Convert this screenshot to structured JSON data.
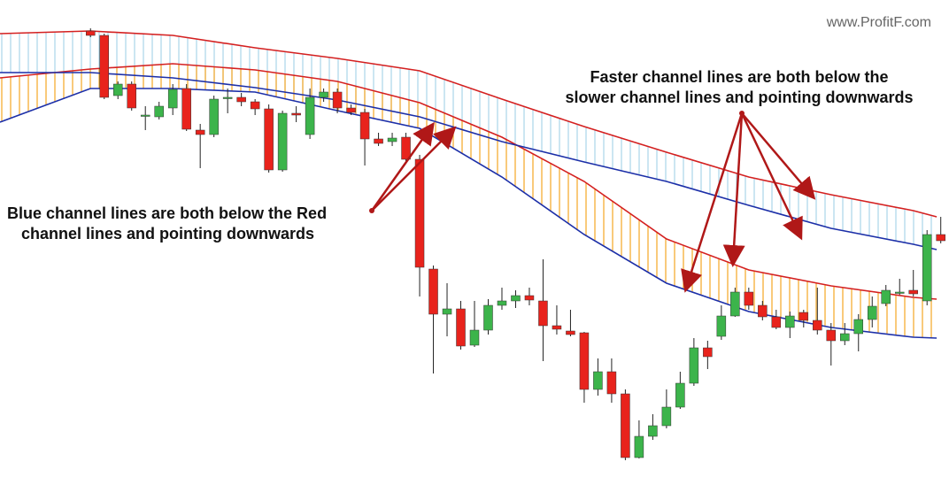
{
  "chart_data": {
    "type": "candlestick",
    "watermark": "www.ProfitF.com",
    "xlim": [
      -6.6,
      62.6
    ],
    "ylim": [
      0,
      548
    ],
    "up_color": "#3cb44b",
    "down_color": "#e8231c",
    "ohlc": [
      [
        513,
        516,
        506,
        508
      ],
      [
        508,
        510,
        436,
        438
      ],
      [
        440,
        456,
        436,
        453
      ],
      [
        453,
        456,
        423,
        426
      ],
      [
        418,
        428,
        401,
        418
      ],
      [
        416,
        433,
        413,
        428
      ],
      [
        426,
        453,
        418,
        447
      ],
      [
        448,
        453,
        400,
        402
      ],
      [
        401,
        408,
        358,
        396
      ],
      [
        396,
        440,
        393,
        436
      ],
      [
        438,
        448,
        420,
        438
      ],
      [
        438,
        443,
        428,
        433
      ],
      [
        433,
        436,
        418,
        425
      ],
      [
        425,
        430,
        353,
        356
      ],
      [
        356,
        423,
        354,
        420
      ],
      [
        420,
        428,
        410,
        418
      ],
      [
        396,
        448,
        391,
        438
      ],
      [
        438,
        448,
        433,
        444
      ],
      [
        444,
        448,
        420,
        426
      ],
      [
        426,
        430,
        418,
        421
      ],
      [
        421,
        425,
        361,
        391
      ],
      [
        391,
        398,
        383,
        386
      ],
      [
        388,
        398,
        383,
        392
      ],
      [
        393,
        398,
        365,
        368
      ],
      [
        368,
        373,
        213,
        246
      ],
      [
        244,
        248,
        126,
        193
      ],
      [
        193,
        228,
        168,
        199
      ],
      [
        199,
        208,
        153,
        157
      ],
      [
        158,
        208,
        156,
        175
      ],
      [
        175,
        210,
        170,
        203
      ],
      [
        203,
        223,
        198,
        208
      ],
      [
        208,
        220,
        200,
        214
      ],
      [
        214,
        223,
        203,
        209
      ],
      [
        208,
        255,
        140,
        180
      ],
      [
        180,
        203,
        170,
        176
      ],
      [
        174,
        198,
        168,
        170
      ],
      [
        172,
        173,
        93,
        108
      ],
      [
        108,
        143,
        101,
        128
      ],
      [
        128,
        143,
        93,
        103
      ],
      [
        103,
        108,
        28,
        31
      ],
      [
        31,
        73,
        30,
        55
      ],
      [
        55,
        80,
        51,
        67
      ],
      [
        67,
        108,
        64,
        88
      ],
      [
        88,
        128,
        86,
        115
      ],
      [
        115,
        166,
        112,
        155
      ],
      [
        155,
        163,
        131,
        145
      ],
      [
        168,
        203,
        164,
        191
      ],
      [
        191,
        223,
        190,
        218
      ],
      [
        218,
        223,
        198,
        203
      ],
      [
        203,
        208,
        186,
        190
      ],
      [
        190,
        198,
        176,
        178
      ],
      [
        178,
        196,
        166,
        191
      ],
      [
        195,
        198,
        178,
        186
      ],
      [
        186,
        223,
        170,
        175
      ],
      [
        175,
        183,
        135,
        163
      ],
      [
        163,
        183,
        158,
        171
      ],
      [
        171,
        193,
        151,
        187
      ],
      [
        187,
        213,
        178,
        202
      ],
      [
        205,
        226,
        202,
        220
      ],
      [
        218,
        233,
        215,
        218
      ],
      [
        220,
        243,
        213,
        216
      ],
      [
        208,
        288,
        203,
        283
      ],
      [
        283,
        303,
        273,
        276
      ]
    ],
    "lines": [
      {
        "color": "#d42020",
        "x": [
          -6.6,
          0,
          6,
          12,
          18,
          24,
          30,
          36,
          42,
          48,
          54,
          60,
          61.7
        ],
        "values": [
          510,
          513,
          508,
          494,
          482,
          468,
          436,
          405,
          376,
          348,
          328,
          310,
          303
        ]
      },
      {
        "color": "#d42020",
        "x": [
          -6.6,
          0,
          6,
          12,
          18,
          24,
          30,
          36,
          42,
          48,
          54,
          60,
          61.7
        ],
        "values": [
          460,
          470,
          476,
          469,
          456,
          432,
          393,
          343,
          278,
          243,
          225,
          212,
          210
        ]
      },
      {
        "color": "#1c2fa8",
        "x": [
          -6.6,
          0,
          6,
          12,
          18,
          24,
          30,
          36,
          42,
          48,
          54,
          60,
          61.7
        ],
        "values": [
          466,
          466,
          460,
          449,
          435,
          416,
          388,
          365,
          343,
          316,
          290,
          272,
          266
        ]
      },
      {
        "color": "#1c2fa8",
        "x": [
          -6.6,
          0,
          6,
          12,
          18,
          24,
          30,
          36,
          42,
          48,
          54,
          60,
          61.7
        ],
        "values": [
          410,
          448,
          448,
          444,
          423,
          403,
          348,
          283,
          228,
          196,
          178,
          167,
          166
        ]
      }
    ],
    "annotations": [
      {
        "lines": [
          "Blue channel lines are both below the Red",
          "channel lines and pointing downwards"
        ]
      },
      {
        "lines": [
          "Faster channel lines are both below the",
          "slower channel lines and pointing downwards"
        ]
      }
    ]
  }
}
